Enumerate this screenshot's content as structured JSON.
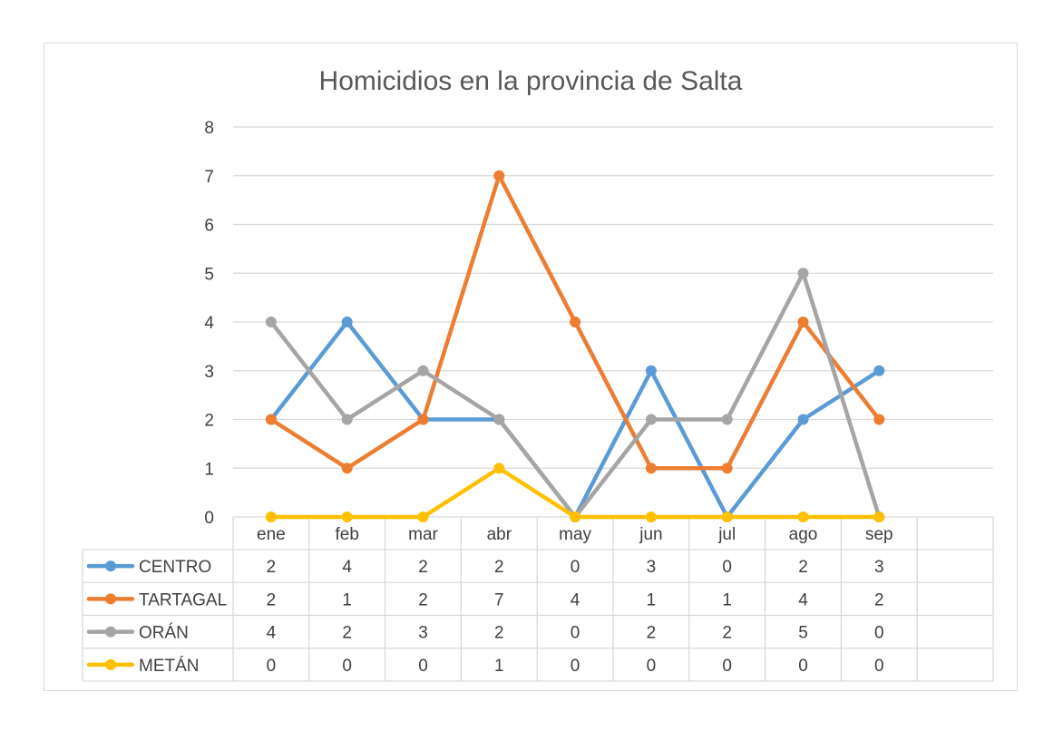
{
  "chart_data": {
    "type": "line",
    "title": "Homicidios en la provincia de Salta",
    "categories": [
      "ene",
      "feb",
      "mar",
      "abr",
      "may",
      "jun",
      "jul",
      "ago",
      "sep"
    ],
    "ylim": [
      0,
      8
    ],
    "yticks": [
      0,
      1,
      2,
      3,
      4,
      5,
      6,
      7,
      8
    ],
    "grid": true,
    "legend_placement": "data-table-below",
    "series": [
      {
        "name": "CENTRO",
        "color": "#5B9BD5",
        "values": [
          2,
          4,
          2,
          2,
          0,
          3,
          0,
          2,
          3
        ]
      },
      {
        "name": "TARTAGAL",
        "color": "#ED7D31",
        "values": [
          2,
          1,
          2,
          7,
          4,
          1,
          1,
          4,
          2
        ]
      },
      {
        "name": "ORÁN",
        "color": "#A5A5A5",
        "values": [
          4,
          2,
          3,
          2,
          0,
          2,
          2,
          5,
          0
        ]
      },
      {
        "name": "METÁN",
        "color": "#FFC000",
        "values": [
          0,
          0,
          0,
          1,
          0,
          0,
          0,
          0,
          0
        ]
      }
    ]
  }
}
